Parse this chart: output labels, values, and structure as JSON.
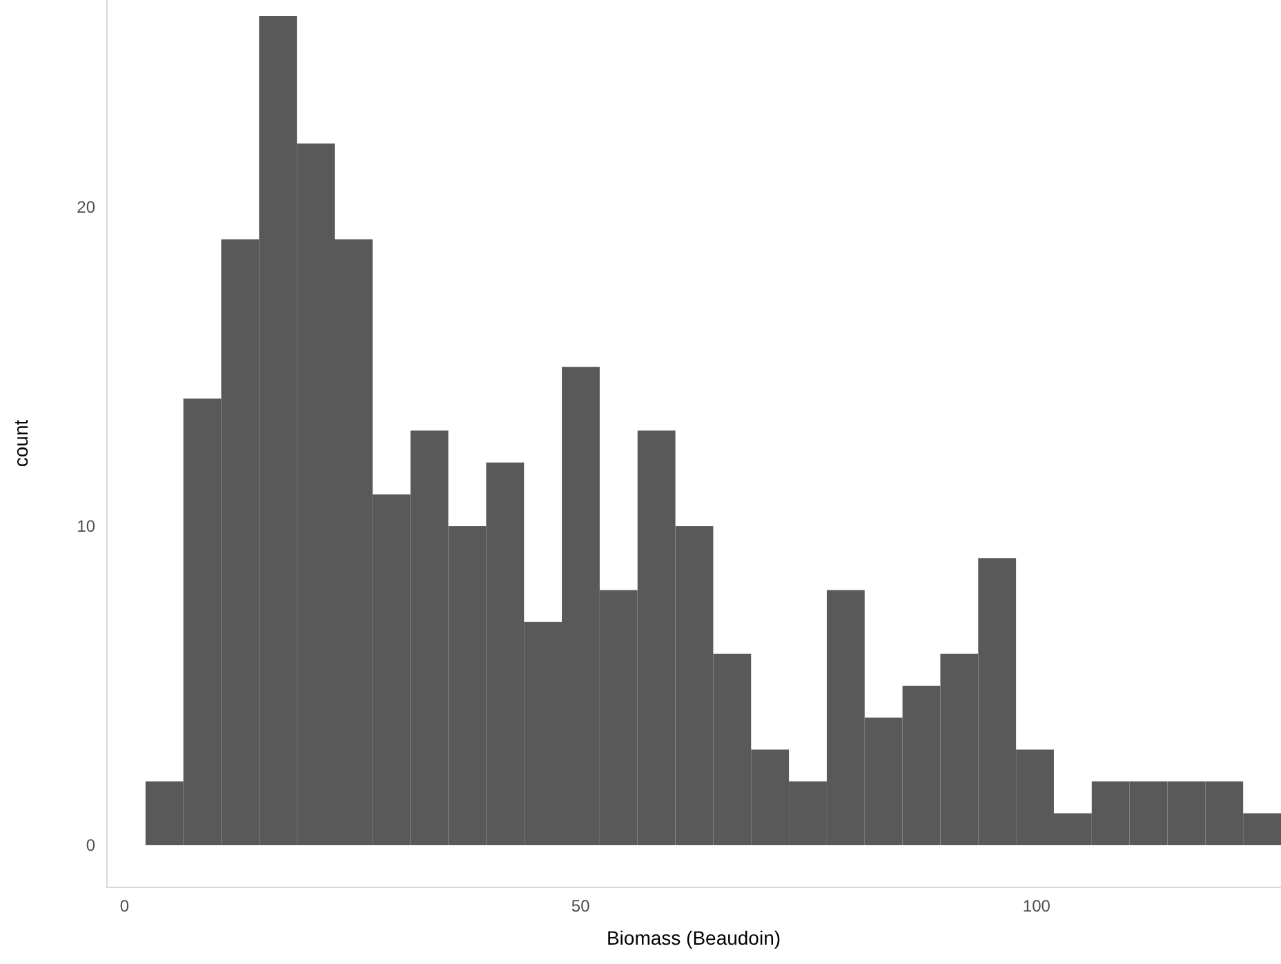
{
  "chart_data": {
    "type": "histogram",
    "xlabel": "Biomass (Beaudoin)",
    "ylabel": "count",
    "color": "#595959",
    "bins": [
      2.3,
      6.45,
      10.6,
      14.75,
      18.9,
      23.05,
      27.2,
      31.35,
      35.5,
      39.65,
      43.8,
      47.95,
      52.1,
      56.25,
      60.4,
      64.55,
      68.7,
      72.85,
      77.0,
      81.15,
      85.3,
      89.45,
      93.6,
      97.75,
      101.9,
      106.05,
      110.2,
      114.35,
      118.5,
      122.65,
      126.8
    ],
    "values": [
      2,
      14,
      19,
      26,
      22,
      19,
      11,
      13,
      10,
      12,
      7,
      15,
      8,
      13,
      10,
      6,
      3,
      2,
      8,
      4,
      5,
      6,
      9,
      3,
      1,
      2,
      2,
      2,
      2,
      1
    ],
    "xlim": [
      -2,
      126.8
    ],
    "ylim": [
      -1.3,
      26.5
    ],
    "xticks": [
      0,
      50,
      100
    ],
    "yticks": [
      0,
      10,
      20
    ],
    "grid": false
  }
}
